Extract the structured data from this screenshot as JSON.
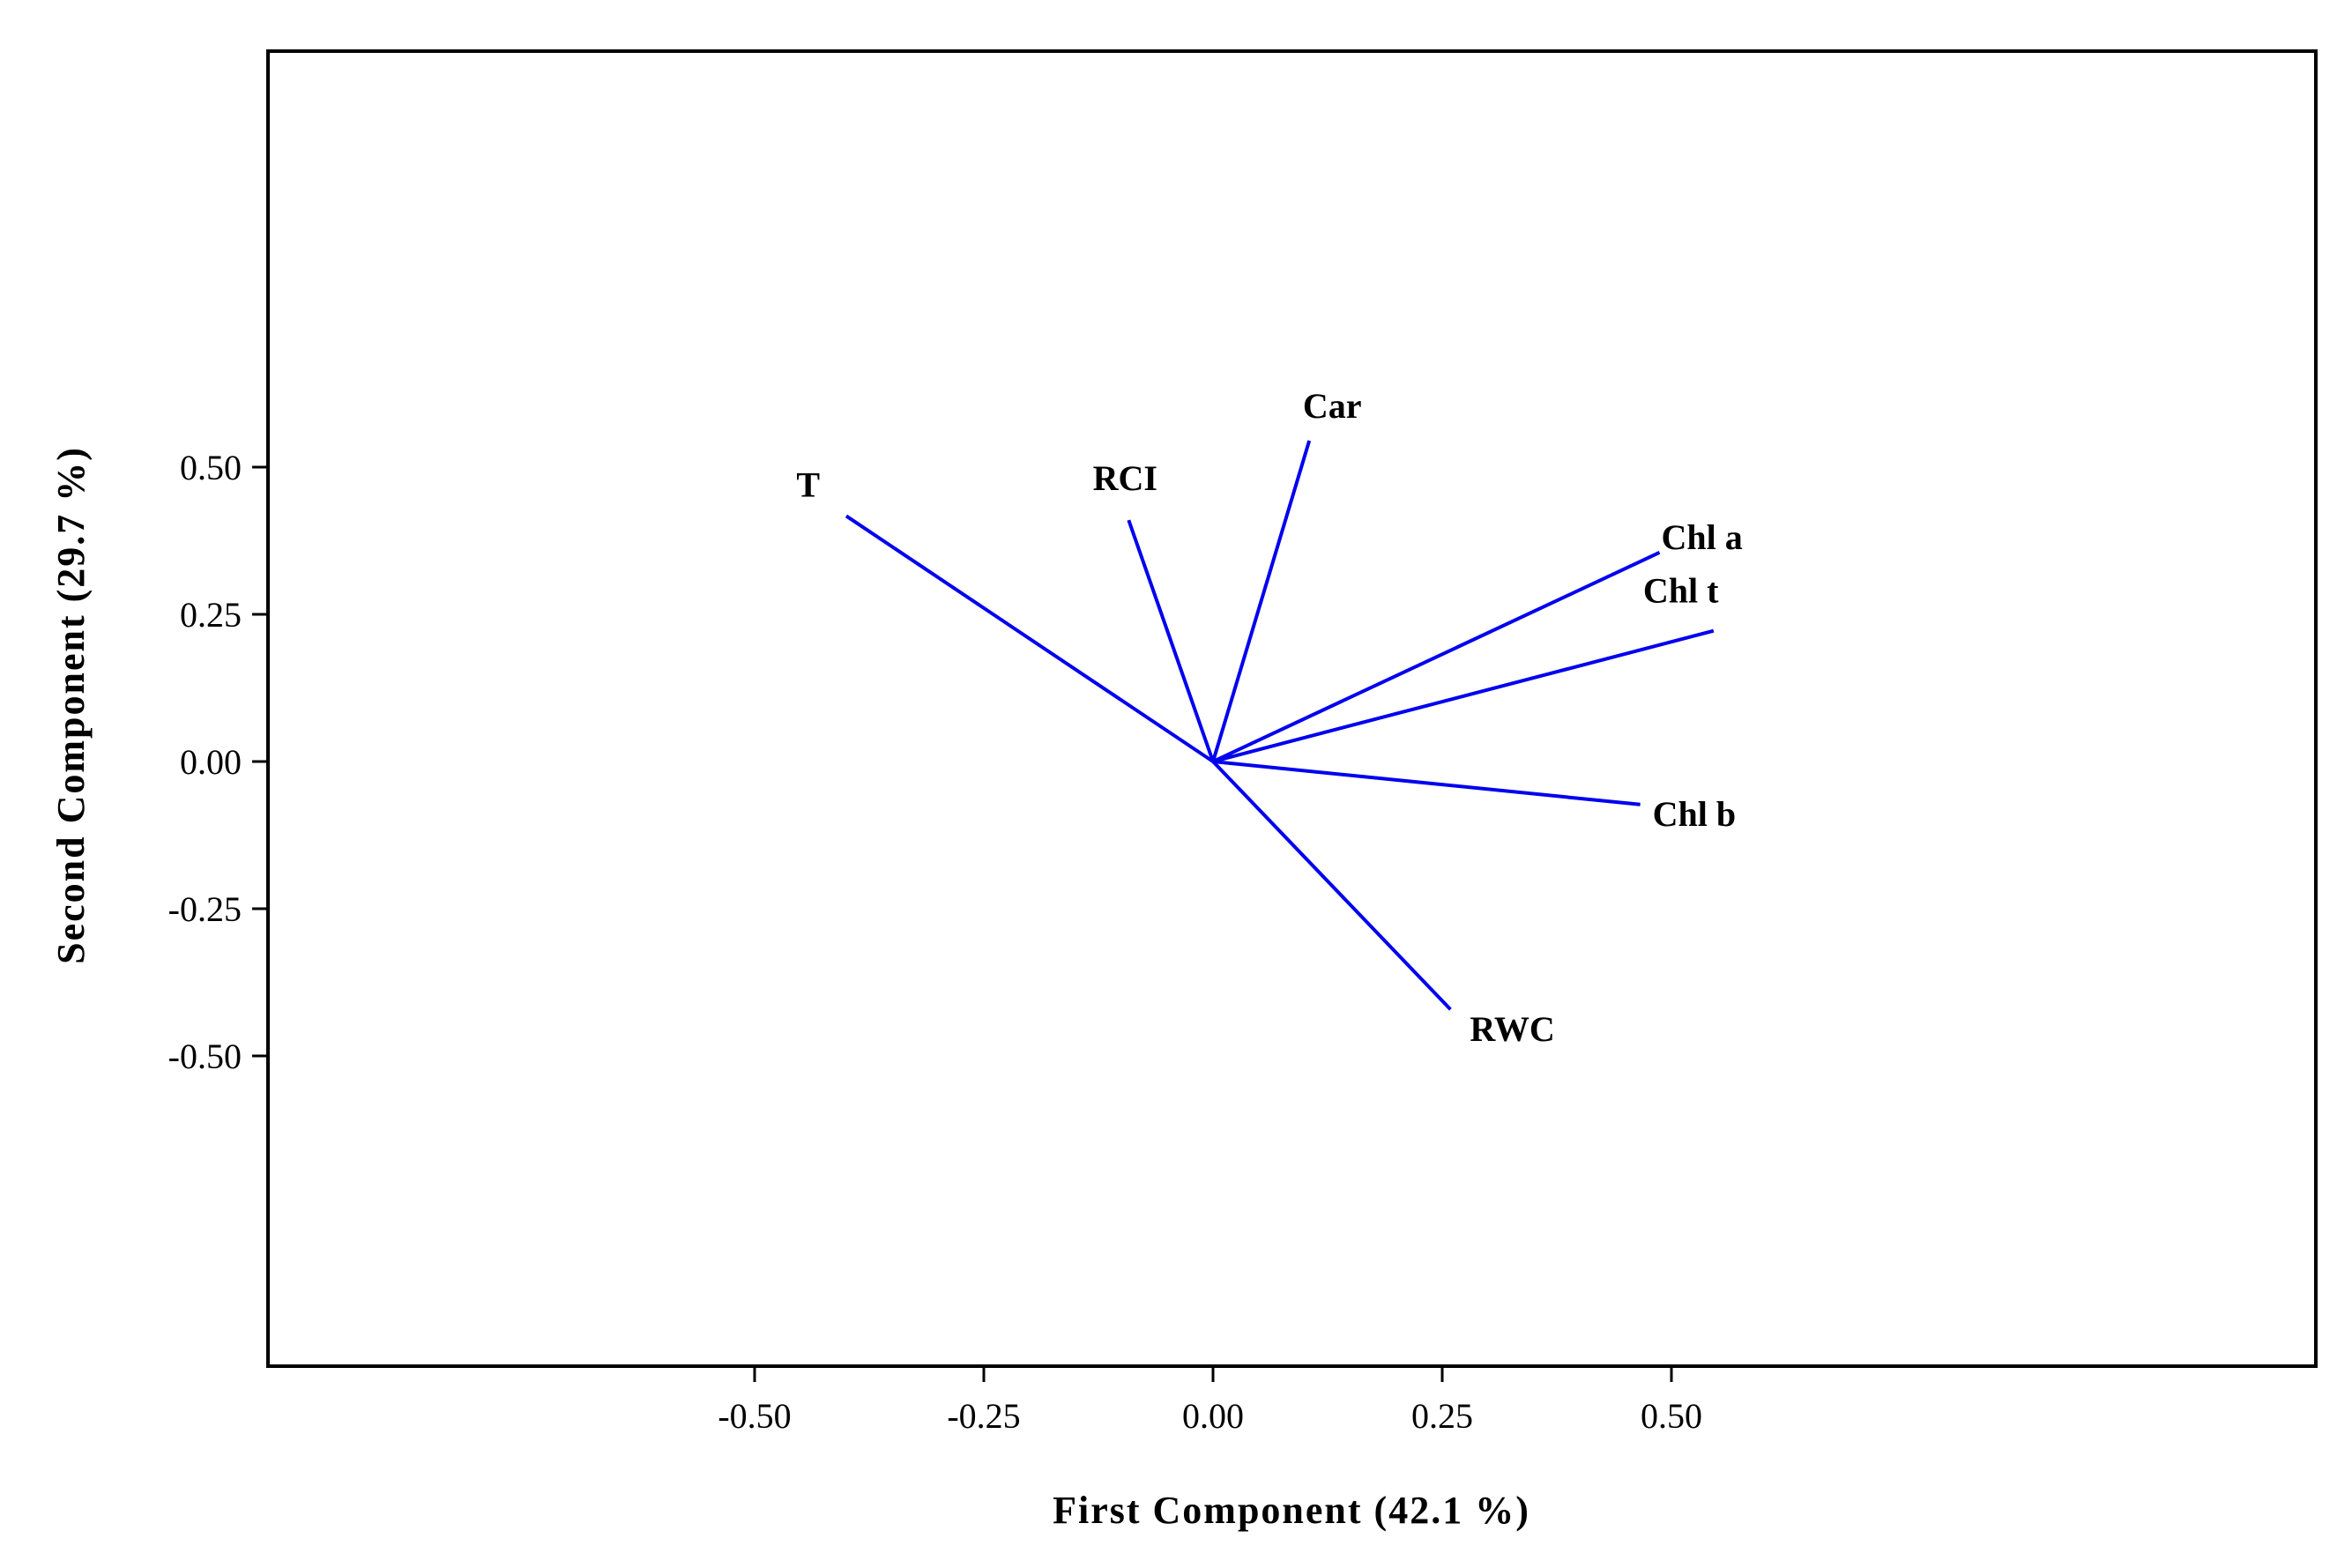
{
  "chart_data": {
    "type": "line",
    "subtype": "loading-plot",
    "xlabel": "First Component (42.1 %)",
    "ylabel": "Second Component (29.7 %)",
    "xlim": [
      -0.52,
      0.6
    ],
    "ylim": [
      -0.52,
      0.6
    ],
    "xticks": [
      -0.5,
      -0.25,
      0.0,
      0.25,
      0.5
    ],
    "xtick_labels": [
      "-0.50",
      "-0.25",
      "0.00",
      "0.25",
      "0.50"
    ],
    "yticks": [
      -0.5,
      -0.25,
      0.0,
      0.25,
      0.5
    ],
    "ytick_labels": [
      "-0.50",
      "-0.25",
      "0.00",
      "0.25",
      "0.50"
    ],
    "grid": false,
    "line_color": "#0000ee",
    "vectors": [
      {
        "name": "T",
        "x": -0.4,
        "y": 0.417
      },
      {
        "name": "RCI",
        "x": -0.092,
        "y": 0.41
      },
      {
        "name": "Car",
        "x": 0.105,
        "y": 0.545
      },
      {
        "name": "Chl a",
        "x": 0.487,
        "y": 0.355
      },
      {
        "name": "Chl t",
        "x": 0.546,
        "y": 0.222
      },
      {
        "name": "Chl b",
        "x": 0.466,
        "y": -0.073
      },
      {
        "name": "RWC",
        "x": 0.259,
        "y": -0.421
      }
    ]
  }
}
